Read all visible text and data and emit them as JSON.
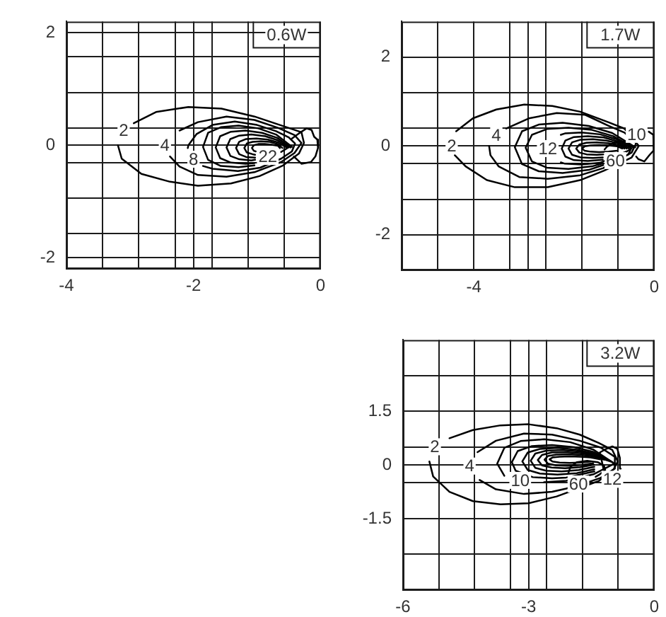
{
  "chart_data": [
    {
      "type": "line",
      "annotations": [
        "0.6W",
        {
          "text": "2",
          "x": -3.1,
          "y": 0.26
        },
        {
          "text": "4",
          "x": -2.45,
          "y": 0
        },
        {
          "text": "8",
          "x": -2.0,
          "y": -0.25
        },
        {
          "text": "22",
          "x": -0.83,
          "y": -0.2
        }
      ],
      "xlim": [
        -4,
        0
      ],
      "xticks": [
        -4,
        {
          "value": -3.43,
          "label": null
        },
        {
          "value": -2.86,
          "label": null
        },
        {
          "value": -2.29,
          "label": null
        },
        -2,
        {
          "value": -1.71,
          "label": null
        },
        {
          "value": -1.14,
          "label": null
        },
        {
          "value": -0.57,
          "label": null
        },
        0
      ],
      "ylim": [
        -2.2,
        2.2
      ],
      "yticks": [
        -2,
        {
          "value": -1.57,
          "label": null
        },
        {
          "value": -0.94,
          "label": null
        },
        {
          "value": -0.31,
          "label": null
        },
        0,
        {
          "value": 0.31,
          "label": null
        },
        {
          "value": 0.94,
          "label": null
        },
        {
          "value": 1.57,
          "label": null
        },
        2
      ],
      "grid": true,
      "series": [
        {
          "color": "#000000",
          "x": [
            -2.94,
            -2.59,
            -2.08,
            -1.56,
            -1.04,
            -0.59,
            -0.3,
            -0.26,
            -0.34,
            -0.59,
            -0.96,
            -1.41,
            -1.93,
            -2.37,
            -2.82,
            -3.13,
            -3.19
          ],
          "values": [
            0.39,
            0.59,
            0.68,
            0.65,
            0.51,
            0.34,
            0.23,
            0.04,
            -0.15,
            -0.36,
            -0.55,
            -0.68,
            -0.72,
            -0.65,
            -0.51,
            -0.24,
            0
          ]
        },
        {
          "color": "#000000",
          "x": [
            -2.22,
            -1.93,
            -1.48,
            -1.04,
            -0.67,
            -0.41,
            -0.3,
            -0.41,
            -0.62,
            -1.04,
            -1.48,
            -1.93,
            -2.22,
            -2.37
          ],
          "values": [
            0.26,
            0.41,
            0.51,
            0.45,
            0.31,
            0.18,
            0.04,
            -0.14,
            -0.3,
            -0.48,
            -0.56,
            -0.53,
            -0.38,
            -0.2
          ]
        },
        {
          "color": "#000000",
          "x": [
            -1.85,
            -1.7,
            -1.3,
            -0.95,
            -0.62,
            -0.45,
            -0.4,
            -0.5,
            -0.7,
            -1.0,
            -1.35,
            -1.7,
            -1.95,
            -2.08,
            -2.09
          ],
          "values": [
            -0.37,
            -0.42,
            -0.46,
            -0.4,
            -0.24,
            -0.11,
            0.03,
            0.14,
            0.25,
            0.36,
            0.42,
            0.36,
            0.2,
            0,
            -0.05
          ]
        },
        {
          "color": "#000000",
          "x": [
            -0.45,
            -0.7,
            -0.98,
            -1.29,
            -1.57,
            -1.77,
            -1.85,
            -1.77,
            -1.57,
            -1.29,
            -1.04
          ],
          "values": [
            -0.03,
            0.19,
            0.3,
            0.35,
            0.32,
            0.22,
            -0.03,
            -0.26,
            -0.37,
            -0.39,
            -0.36
          ]
        },
        {
          "color": "#000000",
          "x": [
            -0.47,
            -0.68,
            -0.92,
            -1.18,
            -1.41,
            -1.58,
            -1.65,
            -1.58,
            -1.41,
            -1.18,
            -1.04
          ],
          "values": [
            -0.04,
            0.13,
            0.22,
            0.26,
            0.24,
            0.16,
            -0.04,
            -0.23,
            -0.31,
            -0.33,
            -0.32
          ]
        },
        {
          "color": "#000000",
          "x": [
            -0.5,
            -0.68,
            -0.87,
            -1.09,
            -1.28,
            -1.42,
            -1.48,
            -1.42,
            -1.28,
            -1.09,
            -1.03
          ],
          "values": [
            -0.04,
            0.09,
            0.16,
            0.19,
            0.17,
            0.11,
            -0.04,
            -0.19,
            -0.25,
            -0.27,
            -0.26
          ]
        },
        {
          "color": "#000000",
          "x": [
            -1.03,
            -1.17,
            -1.28,
            -1.33,
            -1.28,
            -1.17,
            -1.01,
            -0.83,
            -0.67,
            -0.52,
            -0.62
          ],
          "values": [
            -0.22,
            -0.21,
            -0.16,
            -0.05,
            0.06,
            0.11,
            0.12,
            0.1,
            0.05,
            -0.05,
            -0.12
          ]
        },
        {
          "color": "#000000",
          "x": [
            -0.6,
            -0.67,
            -0.8,
            -0.94,
            -1.07,
            -1.16,
            -1.2,
            -1.16,
            -1.07,
            -1.03
          ],
          "values": [
            -0.05,
            0.02,
            0.06,
            0.07,
            0.06,
            0.03,
            -0.05,
            -0.13,
            -0.16,
            -0.17
          ]
        },
        {
          "color": "#000000",
          "x": [
            -0.64,
            -0.67,
            -0.77,
            -0.88,
            -0.98,
            -1.05,
            -1.08,
            -1.05,
            -1.02
          ],
          "values": [
            -0.05,
            -0.01,
            0.01,
            0.02,
            0.02,
            0.0,
            -0.05,
            -0.1,
            -0.11
          ]
        },
        {
          "color": "#000000",
          "x": [
            -0.45,
            -0.35,
            -0.22,
            -0.14,
            -0.1,
            -0.05,
            -0.04,
            -0.08,
            -0.15,
            -0.3,
            -0.42
          ],
          "values": [
            0.12,
            0.2,
            0.3,
            0.27,
            0.15,
            0.1,
            -0.05,
            -0.2,
            -0.3,
            -0.33,
            -0.2
          ]
        }
      ]
    },
    {
      "type": "line",
      "annotations": [
        "1.7W",
        {
          "text": "2",
          "x": -4.49,
          "y": 0
        },
        {
          "text": "4",
          "x": -3.5,
          "y": 0.23
        },
        {
          "text": "12",
          "x": -2.36,
          "y": -0.06
        },
        {
          "text": "60",
          "x": -0.86,
          "y": -0.33
        },
        {
          "text": "10",
          "x": -0.39,
          "y": 0.26
        }
      ],
      "xlim": [
        -5.6,
        0
      ],
      "xticks": [
        {
          "value": -4.8,
          "label": null
        },
        -4,
        {
          "value": -3.2,
          "label": null
        },
        {
          "value": -2.8,
          "label": null
        },
        {
          "value": -2.4,
          "label": null
        },
        {
          "value": -1.6,
          "label": null
        },
        {
          "value": -0.8,
          "label": null
        },
        0
      ],
      "ylim": [
        -2.8,
        2.8
      ],
      "yticks": [
        -2,
        {
          "value": -1.2,
          "label": null
        },
        {
          "value": -0.4,
          "label": null
        },
        0,
        {
          "value": 0.4,
          "label": null
        },
        {
          "value": 1.2,
          "label": null
        },
        2
      ],
      "grid": true,
      "series": [
        {
          "color": "#000000",
          "x": [
            -4.39,
            -4.02,
            -3.5,
            -2.88,
            -2.26,
            -1.64,
            -1.01,
            -0.66,
            -0.34,
            -0.5,
            -1.12,
            -1.64,
            -2.36,
            -3.09,
            -3.71,
            -4.18,
            -4.42
          ],
          "values": [
            0.33,
            0.62,
            0.82,
            0.93,
            0.9,
            0.77,
            0.53,
            0.39,
            0,
            -0.26,
            -0.56,
            -0.77,
            -0.93,
            -0.93,
            -0.77,
            -0.46,
            -0.21
          ]
        },
        {
          "color": "#000000",
          "x": [
            -3.28,
            -2.78,
            -2.16,
            -1.53,
            -1.01,
            -0.66,
            -0.4,
            -0.5,
            -1.13,
            -1.64,
            -2.36,
            -2.99,
            -3.45,
            -3.63,
            -3.66
          ],
          "values": [
            0.39,
            0.62,
            0.74,
            0.7,
            0.45,
            0.3,
            0.06,
            -0.15,
            -0.5,
            -0.66,
            -0.74,
            -0.7,
            -0.46,
            -0.21,
            0
          ]
        },
        {
          "color": "#000000",
          "x": [
            -0.42,
            -0.93,
            -1.45,
            -2.03,
            -2.56,
            -2.93,
            -3.09,
            -2.93,
            -2.56,
            -2.03,
            -1.45,
            -1.13
          ],
          "values": [
            -0.03,
            0.29,
            0.45,
            0.52,
            0.48,
            0.33,
            -0.03,
            -0.41,
            -0.57,
            -0.61,
            -0.54,
            -0.43
          ]
        },
        {
          "color": "#000000",
          "x": [
            -0.46,
            -0.91,
            -1.38,
            -1.9,
            -2.38,
            -2.71,
            -2.85,
            -2.71,
            -2.38,
            -1.9,
            -1.38,
            -1.13
          ],
          "values": [
            -0.04,
            0.22,
            0.36,
            0.41,
            0.38,
            0.25,
            -0.04,
            -0.35,
            -0.49,
            -0.52,
            -0.46,
            -0.39
          ]
        },
        {
          "color": "#000000",
          "x": [
            -2.07,
            -1.98,
            -1.61,
            -1.2,
            -0.83,
            -0.5,
            -0.6,
            -1.2,
            -1.61,
            -1.98,
            -2.07
          ],
          "values": [
            0.25,
            0.28,
            0.3,
            0.26,
            0.15,
            -0.06,
            -0.12,
            -0.38,
            -0.42,
            -0.4,
            -0.37
          ]
        },
        {
          "color": "#000000",
          "x": [
            -0.56,
            -0.8,
            -1.12,
            -1.47,
            -1.78,
            -1.97,
            -2.05,
            -1.97,
            -1.78,
            -1.47,
            -1.14
          ],
          "values": [
            -0.06,
            0.1,
            0.19,
            0.22,
            0.2,
            0.12,
            -0.06,
            -0.24,
            -0.32,
            -0.34,
            -0.31
          ]
        },
        {
          "color": "#000000",
          "x": [
            -0.61,
            -0.79,
            -1.06,
            -1.36,
            -1.63,
            -1.82,
            -1.9,
            -1.82,
            -1.63,
            -1.36,
            -1.14
          ],
          "values": [
            -0.06,
            0.06,
            0.12,
            0.15,
            0.14,
            0.08,
            -0.06,
            -0.2,
            -0.26,
            -0.27,
            -0.26
          ]
        },
        {
          "color": "#000000",
          "x": [
            -0.66,
            -0.79,
            -1.02,
            -1.27,
            -1.5,
            -1.66,
            -1.73,
            -1.66,
            -1.5,
            -1.27,
            -1.13
          ],
          "values": [
            -0.06,
            0.02,
            0.06,
            0.08,
            0.07,
            0.03,
            -0.06,
            -0.15,
            -0.19,
            -0.2,
            -0.19
          ]
        },
        {
          "color": "#000000",
          "x": [
            -0.71,
            -0.82,
            -1.01,
            -1.22,
            -1.41,
            -1.54,
            -1.6,
            -1.54,
            -1.41,
            -1.22,
            -1.01,
            -0.82
          ],
          "values": [
            -0.06,
            -0.01,
            0.01,
            0.02,
            0.01,
            -0.01,
            -0.06,
            -0.11,
            -0.13,
            -0.14,
            -0.13,
            -0.11
          ]
        },
        {
          "color": "#000000",
          "x": [
            -0.58,
            -0.53,
            -0.52,
            -0.56,
            -0.68,
            -0.82,
            -0.95,
            -1.05,
            -1.1
          ],
          "values": [
            -0.2,
            -0.1,
            -0.02,
            0.06,
            0.1,
            0.09,
            0.04,
            -0.02,
            -0.08
          ]
        },
        {
          "color": "#000000",
          "x": [
            -0.12,
            -0.02,
            0,
            -0.02,
            -0.1,
            -0.22,
            -0.35,
            -0.4
          ],
          "values": [
            0.32,
            0.25,
            0.1,
            -0.1,
            -0.2,
            -0.35,
            -0.3,
            -0.24
          ]
        }
      ]
    },
    {
      "type": "line",
      "annotations": [
        "3.2W",
        {
          "text": "2",
          "x": -5.24,
          "y": 0.51
        },
        {
          "text": "4",
          "x": -4.41,
          "y": -0.03
        },
        {
          "text": "10",
          "x": -3.2,
          "y": -0.43
        },
        {
          "text": "60",
          "x": -1.81,
          "y": -0.53
        },
        {
          "text": "12",
          "x": -1.0,
          "y": -0.4
        }
      ],
      "xlim": [
        -6,
        0
      ],
      "xticks": [
        -6,
        {
          "value": -5.14,
          "label": null
        },
        {
          "value": -4.29,
          "label": null
        },
        {
          "value": -3.43,
          "label": null
        },
        -3,
        {
          "value": -2.57,
          "label": null
        },
        {
          "value": -1.71,
          "label": null
        },
        {
          "value": -0.86,
          "label": null
        },
        0
      ],
      "ylim": [
        -3.5,
        3.5
      ],
      "yticks": [
        {
          "value": -2.5,
          "label": null
        },
        -1.5,
        {
          "value": -0.5,
          "label": null
        },
        0,
        {
          "value": 0.5,
          "label": null
        },
        1.5,
        {
          "value": 2.5,
          "label": null
        }
      ],
      "grid": true,
      "series": [
        {
          "color": "#000000",
          "x": [
            -4.89,
            -4.33,
            -3.67,
            -3.0,
            -2.33,
            -1.78,
            -1.33,
            -1.0,
            -0.87,
            -0.97,
            -1.33,
            -1.5,
            -2.1,
            -2.33,
            -3.0,
            -3.67,
            -4.33,
            -4.89,
            -5.28,
            -5.37
          ],
          "values": [
            0.75,
            0.98,
            1.11,
            1.14,
            1.03,
            0.85,
            0.62,
            0.42,
            0.1,
            -0.12,
            -0.45,
            -0.52,
            -0.78,
            -0.88,
            -1.07,
            -1.1,
            -1.01,
            -0.75,
            -0.32,
            0.1
          ]
        },
        {
          "color": "#000000",
          "x": [
            -4.22,
            -3.78,
            -3.11,
            -2.44,
            -1.78,
            -1.28,
            -0.94,
            -0.94,
            -1.28,
            -1.5,
            -2.1,
            -2.44,
            -3.11,
            -3.78,
            -4.17
          ],
          "values": [
            0.36,
            0.68,
            0.88,
            0.85,
            0.68,
            0.49,
            0.23,
            -0.1,
            -0.36,
            -0.45,
            -0.66,
            -0.75,
            -0.81,
            -0.68,
            -0.42
          ]
        },
        {
          "color": "#000000",
          "x": [
            -3.58,
            -3.75,
            -3.58,
            -3.19,
            -2.63,
            -2.01,
            -1.45,
            -0.95,
            -1.45,
            -2.1,
            -2.63
          ],
          "values": [
            -0.3,
            0.04,
            0.48,
            0.67,
            0.72,
            0.64,
            0.43,
            0.04,
            -0.26,
            -0.44,
            -0.48
          ]
        },
        {
          "color": "#000000",
          "x": [
            -1.0,
            -1.43,
            -1.91,
            -2.44,
            -2.92,
            -3.26,
            -3.4,
            -3.31,
            -2.9,
            -2.44,
            -2.1,
            -1.43
          ],
          "values": [
            0.08,
            0.36,
            0.5,
            0.56,
            0.53,
            0.39,
            0.08,
            -0.16,
            -0.34,
            -0.37,
            -0.35,
            -0.18
          ]
        },
        {
          "color": "#000000",
          "x": [
            -1.05,
            -1.43,
            -1.85,
            -2.31,
            -2.73,
            -3.02,
            -3.15,
            -3.02,
            -2.73,
            -2.31,
            -1.85,
            -1.43
          ],
          "values": [
            0.1,
            0.32,
            0.43,
            0.48,
            0.45,
            0.35,
            0.1,
            -0.14,
            -0.24,
            -0.27,
            -0.23,
            -0.12
          ]
        },
        {
          "color": "#000000",
          "x": [
            -1.1,
            -1.43,
            -1.8,
            -2.21,
            -2.58,
            -2.84,
            -2.95,
            -2.84,
            -2.58,
            -2.21,
            -1.8,
            -1.43
          ],
          "values": [
            0.12,
            0.29,
            0.38,
            0.42,
            0.4,
            0.32,
            0.12,
            -0.08,
            -0.16,
            -0.18,
            -0.14,
            -0.05
          ]
        },
        {
          "color": "#000000",
          "x": [
            -1.15,
            -1.44,
            -1.77,
            -2.13,
            -2.45,
            -2.68,
            -2.78,
            -2.68,
            -2.45,
            -2.13,
            -1.77,
            -1.44
          ],
          "values": [
            0.14,
            0.27,
            0.33,
            0.36,
            0.35,
            0.28,
            0.14,
            -0.01,
            -0.07,
            -0.09,
            -0.06,
            0.01
          ]
        },
        {
          "color": "#000000",
          "x": [
            -1.2,
            -1.46,
            -1.74,
            -2.05,
            -2.34,
            -2.54,
            -2.62,
            -2.54,
            -2.34,
            -2.05,
            -1.74,
            -1.46
          ],
          "values": [
            0.15,
            0.24,
            0.28,
            0.3,
            0.29,
            0.25,
            0.15,
            0.04,
            -0.01,
            -0.02,
            0.0,
            0.05
          ]
        },
        {
          "color": "#000000",
          "x": [
            -1.3,
            -1.52,
            -1.76,
            -2.02,
            -2.26,
            -2.43,
            -2.5,
            -2.43,
            -2.26,
            -2.02,
            -1.76,
            -1.52
          ],
          "values": [
            0.16,
            0.21,
            0.23,
            0.24,
            0.23,
            0.21,
            0.16,
            0.1,
            0.07,
            0.06,
            0.07,
            0.1
          ]
        },
        {
          "color": "#000000",
          "x": [
            -1.4,
            -1.3,
            -1.17,
            -1.2,
            -1.35,
            -1.6,
            -1.85,
            -2.0,
            -2.05
          ],
          "values": [
            -0.33,
            -0.26,
            -0.14,
            -0.02,
            0.08,
            0.12,
            0.08,
            -0.05,
            -0.22
          ]
        },
        {
          "color": "#000000",
          "x": [
            -0.8,
            -0.82,
            -0.88,
            -1.0,
            -1.15,
            -1.3,
            -1.25,
            -1.21
          ],
          "values": [
            -0.1,
            0.2,
            0.45,
            0.52,
            0.45,
            0.35,
            0.1,
            -0.12
          ]
        }
      ]
    }
  ]
}
